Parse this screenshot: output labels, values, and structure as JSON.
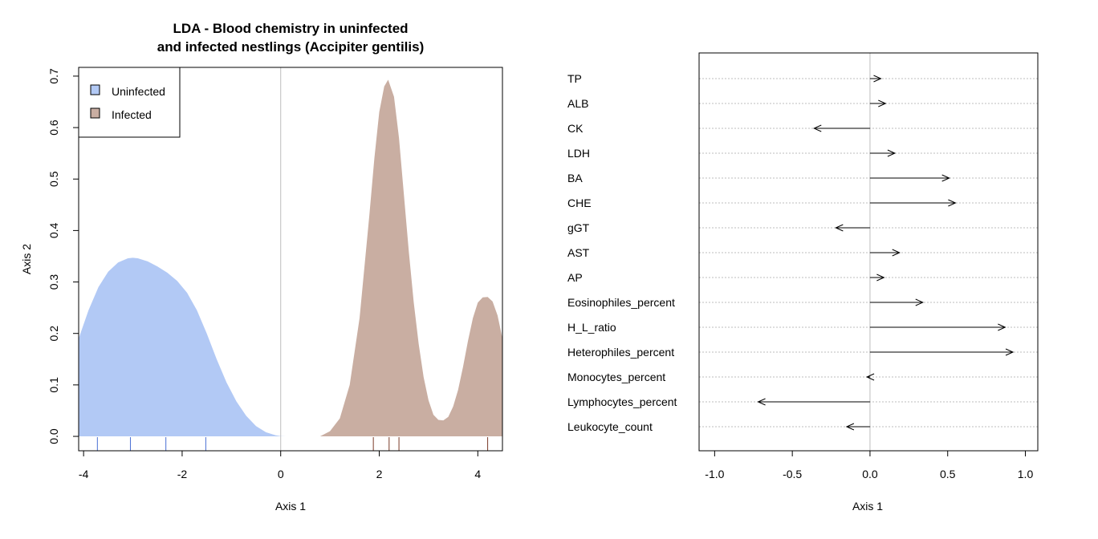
{
  "chart_data": [
    {
      "type": "area",
      "title_lines": [
        "LDA - Blood chemistry in uninfected",
        "and infected nestlings (Accipiter gentilis)"
      ],
      "xlabel": "Axis 1",
      "ylabel": "Axis 2",
      "xlim": [
        -4.1,
        4.5
      ],
      "ylim": [
        -0.028,
        0.717
      ],
      "xticks": [
        -4,
        -2,
        0,
        2,
        4
      ],
      "yticks": [
        0.0,
        0.1,
        0.2,
        0.3,
        0.4,
        0.5,
        0.6,
        0.7
      ],
      "xtick_labels": [
        "-4",
        "-2",
        "0",
        "2",
        "4"
      ],
      "ytick_labels": [
        "0.0",
        "0.1",
        "0.2",
        "0.3",
        "0.4",
        "0.5",
        "0.6",
        "0.7"
      ],
      "legend_position": "top-left",
      "series": [
        {
          "name": "Uninfected",
          "color": "#b2c9f5",
          "rug_color": "#4a6fd4",
          "rug": [
            -3.72,
            -3.05,
            -2.33,
            -1.52
          ],
          "x": [
            -4.1,
            -3.9,
            -3.7,
            -3.5,
            -3.3,
            -3.1,
            -3.0,
            -2.9,
            -2.7,
            -2.5,
            -2.3,
            -2.1,
            -1.9,
            -1.7,
            -1.5,
            -1.3,
            -1.1,
            -0.9,
            -0.7,
            -0.5,
            -0.3,
            -0.1,
            0.0,
            0.1
          ],
          "y": [
            0.19,
            0.245,
            0.29,
            0.32,
            0.338,
            0.346,
            0.347,
            0.346,
            0.34,
            0.33,
            0.318,
            0.302,
            0.279,
            0.245,
            0.2,
            0.15,
            0.105,
            0.068,
            0.04,
            0.02,
            0.008,
            0.002,
            0.0005,
            0.0
          ]
        },
        {
          "name": "Infected",
          "color": "#c9aea2",
          "rug_color": "#7a3a28",
          "rug": [
            1.88,
            2.2,
            2.4,
            4.2
          ],
          "x": [
            0.8,
            1.0,
            1.2,
            1.4,
            1.6,
            1.8,
            1.9,
            2.0,
            2.1,
            2.18,
            2.3,
            2.4,
            2.5,
            2.6,
            2.7,
            2.8,
            2.9,
            3.0,
            3.1,
            3.2,
            3.3,
            3.4,
            3.5,
            3.6,
            3.7,
            3.8,
            3.9,
            4.0,
            4.1,
            4.2,
            4.3,
            4.4,
            4.5
          ],
          "y": [
            0.0,
            0.01,
            0.035,
            0.1,
            0.23,
            0.43,
            0.54,
            0.63,
            0.68,
            0.693,
            0.66,
            0.58,
            0.47,
            0.36,
            0.26,
            0.18,
            0.115,
            0.07,
            0.042,
            0.032,
            0.031,
            0.038,
            0.058,
            0.09,
            0.135,
            0.185,
            0.23,
            0.26,
            0.27,
            0.271,
            0.262,
            0.235,
            0.19
          ]
        }
      ]
    },
    {
      "type": "bar",
      "orientation": "horizontal-arrows",
      "xlabel": "Axis 1",
      "xlim": [
        -1.1,
        1.08
      ],
      "xticks": [
        -1.0,
        -0.5,
        0.0,
        0.5,
        1.0
      ],
      "xtick_labels": [
        "-1.0",
        "-0.5",
        "0.0",
        "0.5",
        "1.0"
      ],
      "grid": true,
      "categories": [
        "TP",
        "ALB",
        "CK",
        "LDH",
        "BA",
        "CHE",
        "gGT",
        "AST",
        "AP",
        "Eosinophiles_percent",
        "H_L_ratio",
        "Heterophiles_percent",
        "Monocytes_percent",
        "Lymphocytes_percent",
        "Leukocyte_count"
      ],
      "values": [
        0.07,
        0.1,
        -0.36,
        0.16,
        0.51,
        0.55,
        -0.22,
        0.19,
        0.09,
        0.34,
        0.87,
        0.92,
        -0.02,
        -0.72,
        -0.15
      ]
    }
  ],
  "colors": {
    "axis": "#000000",
    "zero_line": "#bebebe",
    "grid": "#bebebe"
  }
}
